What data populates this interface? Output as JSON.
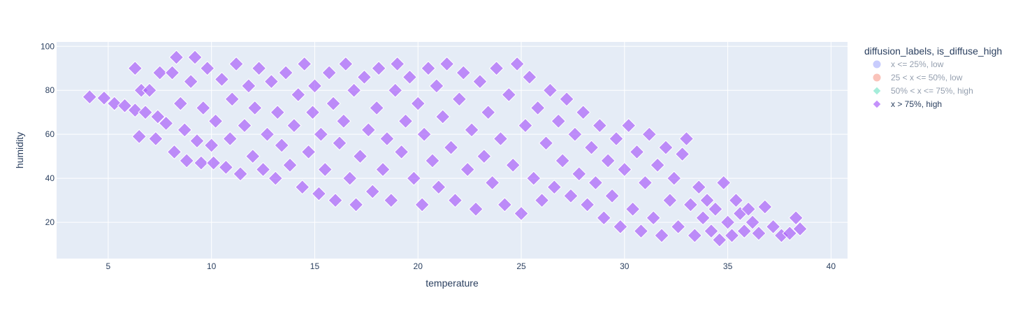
{
  "chart_data": {
    "type": "scatter",
    "xlabel": "temperature",
    "ylabel": "humidity",
    "xlim": [
      2.5,
      40.8
    ],
    "ylim": [
      3.5,
      102
    ],
    "x_ticks": [
      5,
      10,
      15,
      20,
      25,
      30,
      35,
      40
    ],
    "y_ticks": [
      20,
      40,
      60,
      80,
      100
    ],
    "grid": true,
    "legend": {
      "title": "diffusion_labels, is_diffuse_high",
      "placement": "right"
    },
    "series": [
      {
        "name": "x <= 25%, low",
        "color": "#636efa",
        "marker": "circle",
        "visible": false,
        "points": []
      },
      {
        "name": "25 < x <= 50%, low",
        "color": "#ef553b",
        "marker": "circle",
        "visible": false,
        "points": []
      },
      {
        "name": "50% < x <= 75%, high",
        "color": "#00cc96",
        "marker": "diamond",
        "visible": false,
        "points": []
      },
      {
        "name": "x > 75%, high",
        "color": "#ab63fa",
        "marker": "diamond",
        "visible": true,
        "points": [
          [
            4.1,
            77
          ],
          [
            4.8,
            76.5
          ],
          [
            5.3,
            74
          ],
          [
            5.8,
            73
          ],
          [
            6.3,
            71
          ],
          [
            6.3,
            90
          ],
          [
            6.5,
            59
          ],
          [
            6.8,
            70
          ],
          [
            6.6,
            80
          ],
          [
            7.0,
            80
          ],
          [
            7.3,
            58
          ],
          [
            7.5,
            88
          ],
          [
            7.8,
            65
          ],
          [
            7.4,
            68
          ],
          [
            8.1,
            88
          ],
          [
            8.3,
            95
          ],
          [
            8.2,
            52
          ],
          [
            8.5,
            74
          ],
          [
            8.7,
            62
          ],
          [
            8.8,
            48
          ],
          [
            9.0,
            84
          ],
          [
            9.2,
            95
          ],
          [
            9.3,
            57
          ],
          [
            9.5,
            47
          ],
          [
            9.6,
            72
          ],
          [
            9.8,
            90
          ],
          [
            10.0,
            55
          ],
          [
            10.1,
            47
          ],
          [
            10.2,
            66
          ],
          [
            10.5,
            85
          ],
          [
            10.7,
            45
          ],
          [
            10.9,
            58
          ],
          [
            11.0,
            76
          ],
          [
            11.2,
            92
          ],
          [
            11.4,
            42
          ],
          [
            11.6,
            64
          ],
          [
            11.8,
            82
          ],
          [
            12.0,
            50
          ],
          [
            12.1,
            72
          ],
          [
            12.3,
            90
          ],
          [
            12.5,
            44
          ],
          [
            12.7,
            60
          ],
          [
            12.9,
            84
          ],
          [
            13.1,
            40
          ],
          [
            13.2,
            70
          ],
          [
            13.4,
            55
          ],
          [
            13.6,
            88
          ],
          [
            13.8,
            46
          ],
          [
            14.0,
            64
          ],
          [
            14.2,
            78
          ],
          [
            14.4,
            36
          ],
          [
            14.5,
            92
          ],
          [
            14.7,
            52
          ],
          [
            14.9,
            70
          ],
          [
            15.0,
            82
          ],
          [
            15.2,
            33
          ],
          [
            15.3,
            60
          ],
          [
            15.5,
            44
          ],
          [
            15.7,
            88
          ],
          [
            15.9,
            74
          ],
          [
            16.0,
            30
          ],
          [
            16.2,
            56
          ],
          [
            16.4,
            66
          ],
          [
            16.5,
            92
          ],
          [
            16.7,
            40
          ],
          [
            16.9,
            80
          ],
          [
            17.0,
            28
          ],
          [
            17.2,
            50
          ],
          [
            17.4,
            86
          ],
          [
            17.6,
            62
          ],
          [
            17.8,
            34
          ],
          [
            18.0,
            72
          ],
          [
            18.1,
            90
          ],
          [
            18.3,
            44
          ],
          [
            18.5,
            58
          ],
          [
            18.7,
            30
          ],
          [
            18.9,
            80
          ],
          [
            19.0,
            92
          ],
          [
            19.2,
            52
          ],
          [
            19.4,
            66
          ],
          [
            19.6,
            86
          ],
          [
            19.8,
            40
          ],
          [
            20.0,
            74
          ],
          [
            20.2,
            28
          ],
          [
            20.3,
            60
          ],
          [
            20.5,
            90
          ],
          [
            20.7,
            48
          ],
          [
            20.9,
            82
          ],
          [
            21.0,
            36
          ],
          [
            21.2,
            68
          ],
          [
            21.4,
            92
          ],
          [
            21.6,
            54
          ],
          [
            21.8,
            30
          ],
          [
            22.0,
            76
          ],
          [
            22.2,
            88
          ],
          [
            22.4,
            44
          ],
          [
            22.6,
            62
          ],
          [
            22.8,
            26
          ],
          [
            23.0,
            84
          ],
          [
            23.2,
            50
          ],
          [
            23.4,
            70
          ],
          [
            23.6,
            38
          ],
          [
            23.8,
            90
          ],
          [
            24.0,
            58
          ],
          [
            24.2,
            28
          ],
          [
            24.4,
            78
          ],
          [
            24.6,
            46
          ],
          [
            24.8,
            92
          ],
          [
            25.0,
            24
          ],
          [
            25.2,
            64
          ],
          [
            25.4,
            86
          ],
          [
            25.6,
            40
          ],
          [
            25.8,
            72
          ],
          [
            26.0,
            30
          ],
          [
            26.2,
            56
          ],
          [
            26.4,
            80
          ],
          [
            26.6,
            36
          ],
          [
            26.8,
            66
          ],
          [
            27.0,
            48
          ],
          [
            27.2,
            76
          ],
          [
            27.4,
            32
          ],
          [
            27.6,
            60
          ],
          [
            27.8,
            42
          ],
          [
            28.0,
            70
          ],
          [
            28.2,
            28
          ],
          [
            28.4,
            54
          ],
          [
            28.6,
            38
          ],
          [
            28.8,
            64
          ],
          [
            29.0,
            22
          ],
          [
            29.2,
            48
          ],
          [
            29.4,
            32
          ],
          [
            29.6,
            58
          ],
          [
            29.8,
            18
          ],
          [
            30.0,
            44
          ],
          [
            30.2,
            64
          ],
          [
            30.4,
            26
          ],
          [
            30.6,
            52
          ],
          [
            30.8,
            16
          ],
          [
            31.0,
            38
          ],
          [
            31.2,
            60
          ],
          [
            31.4,
            22
          ],
          [
            31.6,
            46
          ],
          [
            31.8,
            14
          ],
          [
            32.0,
            54
          ],
          [
            32.2,
            30
          ],
          [
            32.4,
            40
          ],
          [
            32.6,
            18
          ],
          [
            32.8,
            51
          ],
          [
            33.0,
            58
          ],
          [
            33.2,
            28
          ],
          [
            33.4,
            14
          ],
          [
            33.6,
            36
          ],
          [
            33.8,
            22
          ],
          [
            34.0,
            30
          ],
          [
            34.2,
            16
          ],
          [
            34.4,
            26
          ],
          [
            34.6,
            12
          ],
          [
            34.8,
            38
          ],
          [
            35.0,
            20
          ],
          [
            35.2,
            14
          ],
          [
            35.4,
            30
          ],
          [
            35.6,
            24
          ],
          [
            35.8,
            16
          ],
          [
            36.0,
            26
          ],
          [
            36.2,
            20
          ],
          [
            36.5,
            15
          ],
          [
            36.8,
            27
          ],
          [
            37.2,
            18
          ],
          [
            37.6,
            14
          ],
          [
            38.0,
            15
          ],
          [
            38.3,
            22
          ],
          [
            38.5,
            17
          ]
        ]
      }
    ]
  }
}
